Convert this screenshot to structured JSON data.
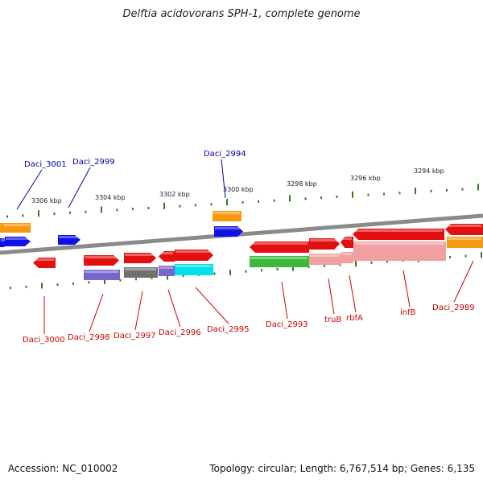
{
  "title": "Delftia acidovorans SPH-1, complete genome",
  "footer": {
    "accession": "Accession: NC_010002",
    "topology": "Topology: circular; Length: 6,767,514 bp; Genes: 6,135"
  },
  "colors": {
    "backbone": "#8a8a8a",
    "ticks": "#2e7d1a",
    "label_top": "#0000aa",
    "label_bottom": "#cc0000",
    "red": "#e31010",
    "blue": "#1010e8",
    "orange": "#f59a10",
    "green": "#3cb83c",
    "purple": "#7766cc",
    "gray": "#707070",
    "cyan": "#00e0e8",
    "pink": "#f0a0a0"
  },
  "scale_labels": [
    "3306 kbp",
    "3304 kbp",
    "3302 kbp",
    "3300 kbp",
    "3298 kbp",
    "3296 kbp",
    "3294 kbp"
  ],
  "gene_labels_top": [
    "Daci_3001",
    "Daci_2999",
    "Daci_2994"
  ],
  "gene_labels_bottom": [
    "Daci_3000",
    "Daci_2998",
    "Daci_2997",
    "Daci_2996",
    "Daci_2995",
    "Daci_2993",
    "truB",
    "rbfA",
    "infB",
    "Daci_2989"
  ]
}
